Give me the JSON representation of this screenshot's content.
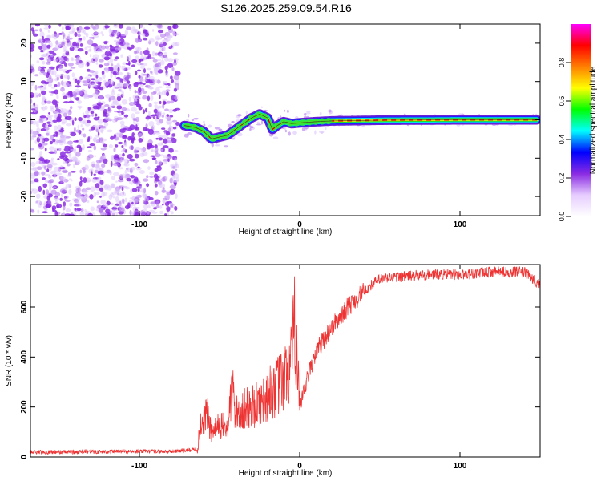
{
  "title": "S126.2025.259.09.54.R16",
  "chart_data": [
    {
      "type": "heatmap",
      "title": "S126.2025.259.09.54.R16",
      "xlabel": "Height of straight line (km)",
      "ylabel": "Frequency (Hz)",
      "xlim": [
        -168,
        150
      ],
      "ylim": [
        -25,
        25
      ],
      "x_ticks": [
        -100,
        0,
        100
      ],
      "x_tick_labels": [
        "-100",
        "0",
        "100"
      ],
      "y_ticks": [
        -20,
        -10,
        0,
        10,
        20
      ],
      "y_tick_labels": [
        "-20",
        "-10",
        "0",
        "10",
        "20"
      ],
      "noise_region_x": [
        -168,
        -72
      ],
      "signal_ridge": {
        "x": [
          -72,
          -65,
          -60,
          -55,
          -50,
          -45,
          -40,
          -35,
          -30,
          -25,
          -20,
          -17,
          -14,
          -10,
          -5,
          0,
          10,
          20,
          50,
          100,
          148
        ],
        "y": [
          -1.5,
          -2,
          -3,
          -5,
          -4.5,
          -4,
          -2.5,
          -1,
          0.5,
          1.5,
          0.5,
          -2.5,
          -1.5,
          -0.5,
          -1,
          -0.8,
          -0.5,
          -0.3,
          -0.1,
          0,
          0
        ]
      },
      "colorbar": {
        "label": "Normalized spectral amplitude",
        "range": [
          0,
          1
        ],
        "ticks": [
          0.0,
          0.2,
          0.4,
          0.6,
          0.8
        ],
        "tick_labels": [
          "0.0",
          "0.2",
          "0.4",
          "0.6",
          "0.8"
        ],
        "colors": [
          "#ffffff",
          "#e6ccff",
          "#8a2be2",
          "#0000ff",
          "#00ffff",
          "#00ff00",
          "#ffff00",
          "#ff8000",
          "#ff0000",
          "#ff00ff"
        ]
      }
    },
    {
      "type": "line",
      "xlabel": "Height of straight line (km)",
      "ylabel": "SNR (10 * v/v)",
      "xlim": [
        -168,
        150
      ],
      "ylim": [
        0,
        770
      ],
      "x_ticks": [
        -100,
        0,
        100
      ],
      "x_tick_labels": [
        "-100",
        "0",
        "100"
      ],
      "y_ticks": [
        0,
        200,
        400,
        600
      ],
      "y_tick_labels": [
        "0",
        "200",
        "400",
        "600"
      ],
      "series": [
        {
          "name": "SNR",
          "color": "#ee3333",
          "x": [
            -168,
            -140,
            -110,
            -80,
            -64,
            -62,
            -58,
            -55,
            -50,
            -45,
            -42,
            -40,
            -35,
            -30,
            -25,
            -20,
            -15,
            -10,
            -5,
            -3,
            -1,
            0,
            5,
            10,
            15,
            20,
            25,
            30,
            35,
            40,
            45,
            50,
            60,
            80,
            100,
            120,
            140,
            150
          ],
          "values": [
            20,
            20,
            22,
            22,
            30,
            120,
            180,
            90,
            130,
            110,
            280,
            170,
            190,
            200,
            210,
            250,
            280,
            300,
            380,
            520,
            400,
            180,
            320,
            420,
            470,
            520,
            560,
            600,
            630,
            660,
            690,
            710,
            720,
            730,
            730,
            740,
            740,
            690
          ]
        }
      ]
    }
  ]
}
